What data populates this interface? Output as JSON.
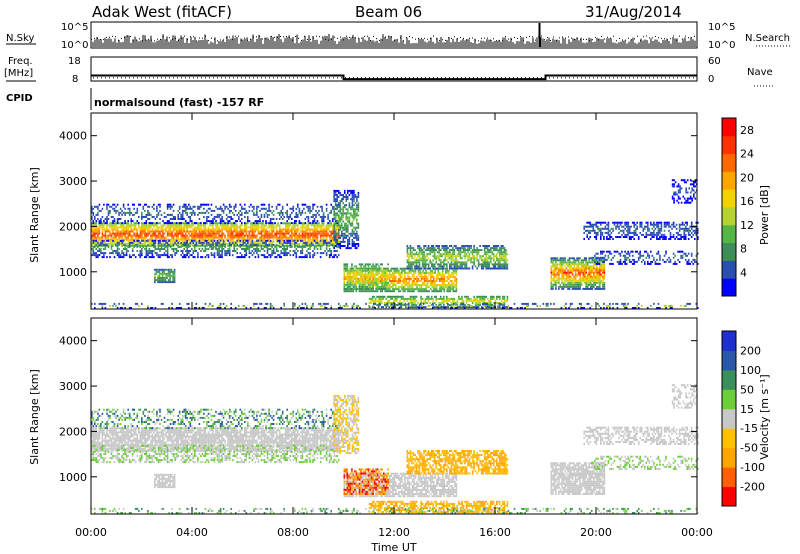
{
  "header": {
    "station": "Adak West (fitACF)",
    "beam": "Beam 06",
    "date": "31/Aug/2014"
  },
  "left_labels": {
    "nsky": "N.Sky",
    "freq": "Freq.",
    "mhz": "[MHz]",
    "cpid": "CPID"
  },
  "right_labels": {
    "nsearch": "N.Search",
    "nave": "Nave"
  },
  "mode_text": "normalsound (fast) -157 RF",
  "colors": {
    "power": [
      "#0000ff",
      "#2a4fb0",
      "#3d8c5a",
      "#55b547",
      "#b5d22f",
      "#f2d300",
      "#ffa500",
      "#ff6a00",
      "#ff3200",
      "#ff0000"
    ],
    "velocity": [
      "#ff0000",
      "#ff6000",
      "#ffa500",
      "#ffc000",
      "#c8c8c8",
      "#6ccf3a",
      "#3a8f5a",
      "#2a58a8",
      "#1e30d0"
    ]
  },
  "chart_data": [
    {
      "type": "line",
      "name": "noise",
      "ylabels_left": [
        "10^5",
        "10^0"
      ],
      "ylabels_right": [
        "10^5",
        "10^0"
      ],
      "x_range": [
        0,
        24
      ]
    },
    {
      "type": "line",
      "name": "frequency",
      "ylabels_left": [
        "18",
        "8"
      ],
      "ylabels_right": [
        "60",
        "0"
      ],
      "freq_segments": [
        {
          "x0": 0,
          "x1": 10,
          "mhz": 10.3
        },
        {
          "x0": 10,
          "x1": 18,
          "mhz": 8.8
        },
        {
          "x0": 18,
          "x1": 24,
          "mhz": 10.3
        }
      ],
      "nave_level": 8
    },
    {
      "type": "heatmap",
      "name": "power",
      "xlabel": "",
      "ylabel": "Slant Range [km]",
      "ylim": [
        180,
        4500
      ],
      "yticks": [
        "4000",
        "3000",
        "2000",
        "1000"
      ],
      "ytick_values": [
        4000,
        3000,
        2000,
        1000
      ],
      "colorbar_label": "Power [dB]",
      "colorbar_ticks": [
        "28",
        "24",
        "20",
        "16",
        "12",
        "8",
        "4"
      ],
      "colorbar_tick_values": [
        28,
        24,
        20,
        16,
        12,
        8,
        4
      ],
      "colorbar_range": [
        0,
        30
      ]
    },
    {
      "type": "heatmap",
      "name": "velocity",
      "xlabel": "Time UT",
      "ylabel": "Slant Range [km]",
      "ylim": [
        180,
        4500
      ],
      "yticks": [
        "4000",
        "3000",
        "2000",
        "1000"
      ],
      "ytick_values": [
        4000,
        3000,
        2000,
        1000
      ],
      "colorbar_label": "Velocity [m s⁻¹]",
      "colorbar_ticks": [
        "200",
        "100",
        "50",
        "15",
        "-15",
        "-50",
        "-100",
        "-200"
      ],
      "xticks": [
        "00:00",
        "04:00",
        "08:00",
        "12:00",
        "16:00",
        "20:00",
        "00:00"
      ],
      "xtick_values": [
        0,
        4,
        8,
        12,
        16,
        20,
        24
      ]
    }
  ]
}
